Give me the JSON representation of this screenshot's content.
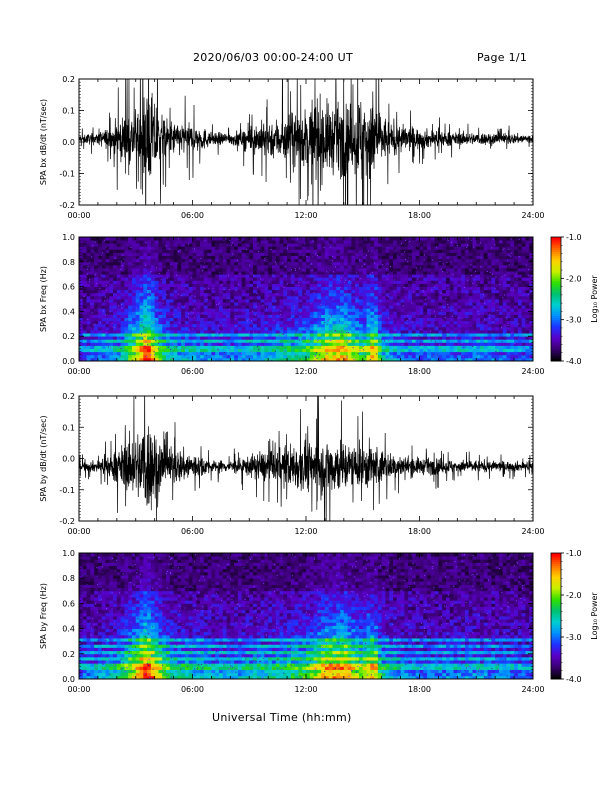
{
  "header": {
    "date_range": "2020/06/03  00:00-24:00 UT",
    "page": "Page 1/1"
  },
  "x_axis": {
    "label": "Universal Time (hh:mm)",
    "ticks": [
      "00:00",
      "06:00",
      "12:00",
      "18:00",
      "24:00"
    ],
    "range_hours": [
      0,
      24
    ]
  },
  "colorbar": {
    "label": "Log₁₀ Power",
    "ticks": [
      "-1.0",
      "-2.0",
      "-3.0",
      "-4.0"
    ],
    "range": [
      -4.0,
      -1.0
    ],
    "colors": [
      "#000000",
      "#3a0070",
      "#5a00c8",
      "#2030ff",
      "#0090ff",
      "#00d0d0",
      "#00c070",
      "#30e000",
      "#c8f000",
      "#ffd000",
      "#ff7000",
      "#ff0000"
    ]
  },
  "chart_data": [
    {
      "type": "line",
      "name": "panel-bx-waveform",
      "ylabel": "SPA bx dB/dt (nT/sec)",
      "ylim": [
        -0.2,
        0.2
      ],
      "ytick_labels": [
        "0.2",
        "0.1",
        "0.0",
        "-0.1",
        "-0.2"
      ],
      "yticks": [
        0.2,
        0.1,
        0.0,
        -0.1,
        -0.2
      ],
      "x_hours": [
        0,
        1,
        1.5,
        2,
        2.5,
        3,
        3.5,
        4,
        4.5,
        5,
        5.5,
        6,
        6.5,
        7,
        7.5,
        8,
        8.5,
        9,
        9.5,
        10,
        10.5,
        11,
        11.5,
        12,
        12.5,
        13,
        13.5,
        14,
        14.5,
        15,
        15.5,
        16,
        16.5,
        17,
        17.5,
        18,
        19,
        20,
        21,
        22,
        23,
        24
      ],
      "envelope": [
        0.02,
        0.03,
        0.05,
        0.09,
        0.12,
        0.14,
        0.25,
        0.2,
        0.1,
        0.08,
        0.08,
        0.07,
        0.06,
        0.03,
        0.03,
        0.03,
        0.04,
        0.06,
        0.08,
        0.09,
        0.1,
        0.12,
        0.14,
        0.14,
        0.22,
        0.18,
        0.16,
        0.18,
        0.16,
        0.25,
        0.22,
        0.12,
        0.08,
        0.07,
        0.06,
        0.05,
        0.04,
        0.03,
        0.03,
        0.03,
        0.025,
        0.02
      ],
      "offset": 0.01
    },
    {
      "type": "heatmap",
      "name": "panel-bx-spectrogram",
      "ylabel": "SPA bx Freq (Hz)",
      "ylim": [
        0.0,
        1.0
      ],
      "ytick_labels": [
        "1.0",
        "0.8",
        "0.6",
        "0.4",
        "0.2",
        "0.0"
      ],
      "yticks": [
        1.0,
        0.8,
        0.6,
        0.4,
        0.2,
        0.0
      ],
      "activity_hours": [
        0,
        2,
        3,
        3.6,
        4.2,
        5,
        6,
        8,
        10,
        12,
        13,
        14,
        15,
        15.6,
        16,
        17,
        18,
        21,
        24
      ],
      "activity_level": [
        0.15,
        0.3,
        0.7,
        1.0,
        0.6,
        0.35,
        0.3,
        0.25,
        0.35,
        0.5,
        0.75,
        0.8,
        0.55,
        0.85,
        0.4,
        0.25,
        0.2,
        0.25,
        0.15
      ],
      "band_freqs_hz": [
        0.08,
        0.12,
        0.17,
        0.2,
        0.25,
        0.3
      ]
    },
    {
      "type": "line",
      "name": "panel-by-waveform",
      "ylabel": "SPA by dB/dt (nT/sec)",
      "ylim": [
        -0.2,
        0.2
      ],
      "ytick_labels": [
        "0.2",
        "0.1",
        "0.0",
        "-0.1",
        "-0.2"
      ],
      "yticks": [
        0.2,
        0.1,
        0.0,
        -0.1,
        -0.2
      ],
      "x_hours": [
        0,
        1,
        1.5,
        2,
        2.5,
        3,
        3.5,
        4,
        4.5,
        5,
        5.5,
        6,
        6.5,
        7,
        7.5,
        8,
        8.5,
        9,
        9.5,
        10,
        10.5,
        11,
        11.5,
        12,
        12.5,
        13,
        13.5,
        14,
        14.5,
        15,
        15.5,
        16,
        16.5,
        17,
        17.5,
        18,
        19,
        20,
        21,
        22,
        23,
        24
      ],
      "envelope": [
        0.02,
        0.03,
        0.05,
        0.08,
        0.12,
        0.15,
        0.25,
        0.2,
        0.1,
        0.09,
        0.08,
        0.07,
        0.05,
        0.03,
        0.03,
        0.03,
        0.04,
        0.05,
        0.07,
        0.08,
        0.08,
        0.1,
        0.12,
        0.12,
        0.13,
        0.14,
        0.14,
        0.13,
        0.1,
        0.11,
        0.12,
        0.08,
        0.06,
        0.05,
        0.05,
        0.04,
        0.04,
        0.03,
        0.03,
        0.025,
        0.025,
        0.02
      ],
      "offset": -0.025
    },
    {
      "type": "heatmap",
      "name": "panel-by-spectrogram",
      "ylabel": "SPA by Freq (Hz)",
      "ylim": [
        0.0,
        1.0
      ],
      "ytick_labels": [
        "1.0",
        "0.8",
        "0.6",
        "0.4",
        "0.2",
        "0.0"
      ],
      "yticks": [
        1.0,
        0.8,
        0.6,
        0.4,
        0.2,
        0.0
      ],
      "activity_hours": [
        0,
        2,
        3,
        3.6,
        4.2,
        5,
        6,
        8,
        10,
        12,
        13,
        14,
        15,
        15.6,
        16,
        17,
        18,
        21,
        24
      ],
      "activity_level": [
        0.2,
        0.4,
        0.75,
        1.0,
        0.7,
        0.45,
        0.4,
        0.3,
        0.4,
        0.55,
        0.8,
        0.85,
        0.6,
        0.85,
        0.45,
        0.3,
        0.25,
        0.3,
        0.2
      ],
      "band_freqs_hz": [
        0.08,
        0.12,
        0.17,
        0.22,
        0.27,
        0.32
      ]
    }
  ]
}
